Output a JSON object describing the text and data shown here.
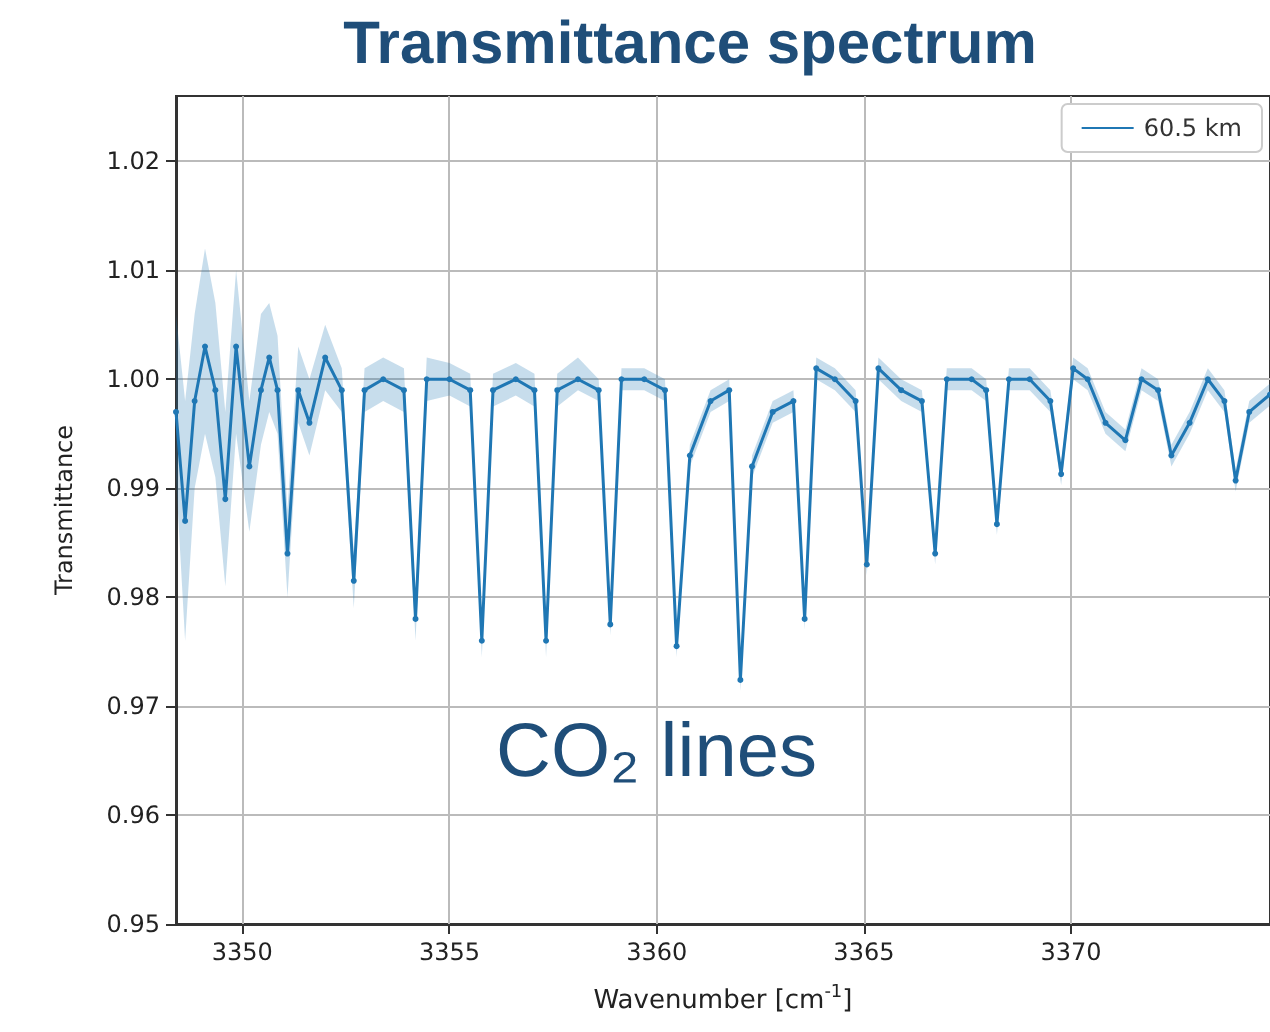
{
  "chart_data": {
    "type": "line",
    "title": "Transmittance spectrum",
    "xlabel": "Wavenumber [$^{}$cm$^{-1}$]",
    "ylabel": "Transmittance",
    "annotations": [
      "CO₂ lines"
    ],
    "xlim": [
      3348.4,
      3374.8
    ],
    "xticks": [
      3350,
      3355,
      3360,
      3365,
      3370
    ],
    "ylim": [
      0.95,
      1.026
    ],
    "yticks": [
      0.95,
      0.96,
      0.97,
      0.98,
      0.99,
      {
        "value": 1,
        "label": "1.00"
      },
      1.01,
      1.02
    ],
    "grid": true,
    "legend": "top right",
    "marker": "circle",
    "line_style": "solid",
    "series": [
      {
        "name": "60.5 km",
        "color": "#1f77b4",
        "x": [
          3348.4,
          3348.62,
          3348.85,
          3349.1,
          3349.35,
          3349.59,
          3349.85,
          3350.17,
          3350.45,
          3350.65,
          3350.85,
          3351.09,
          3351.35,
          3351.62,
          3352.0,
          3352.4,
          3352.69,
          3352.95,
          3353.4,
          3353.9,
          3354.18,
          3354.45,
          3355.0,
          3355.5,
          3355.78,
          3356.05,
          3356.6,
          3357.05,
          3357.33,
          3357.6,
          3358.1,
          3358.6,
          3358.88,
          3359.15,
          3359.7,
          3360.2,
          3360.48,
          3360.8,
          3361.3,
          3361.75,
          3362.02,
          3362.3,
          3362.8,
          3363.3,
          3363.57,
          3363.85,
          3364.3,
          3364.8,
          3365.07,
          3365.35,
          3365.9,
          3366.4,
          3366.72,
          3367.0,
          3367.6,
          3367.95,
          3368.21,
          3368.5,
          3369.0,
          3369.5,
          3369.76,
          3370.05,
          3370.4,
          3370.83,
          3371.31,
          3371.7,
          3372.1,
          3372.42,
          3372.86,
          3373.3,
          3373.7,
          3373.97,
          3374.3,
          3374.8
        ],
        "values": [
          0.997,
          0.987,
          0.998,
          1.003,
          0.999,
          0.989,
          1.003,
          0.992,
          0.999,
          1.002,
          0.999,
          0.984,
          0.999,
          0.996,
          1.002,
          0.999,
          0.9815,
          0.999,
          1.0,
          0.999,
          0.978,
          1.0,
          1.0,
          0.999,
          0.976,
          0.999,
          1.0,
          0.999,
          0.976,
          0.999,
          1.0,
          0.999,
          0.9775,
          1.0,
          1.0,
          0.999,
          0.9755,
          0.993,
          0.998,
          0.999,
          0.9724,
          0.992,
          0.997,
          0.998,
          0.978,
          1.001,
          1.0,
          0.998,
          0.983,
          1.001,
          0.999,
          0.998,
          0.984,
          1.0,
          1.0,
          0.999,
          0.9867,
          1.0,
          1.0,
          0.998,
          0.9913,
          1.001,
          1.0,
          0.996,
          0.9944,
          1.0,
          0.999,
          0.993,
          0.996,
          1.0,
          0.998,
          0.9907,
          0.997,
          0.9986
        ],
        "lower": [
          0.991,
          0.976,
          0.99,
          0.995,
          0.991,
          0.981,
          0.995,
          0.986,
          0.994,
          0.997,
          0.995,
          0.98,
          0.996,
          0.993,
          0.999,
          0.997,
          0.979,
          0.997,
          0.998,
          0.997,
          0.976,
          0.998,
          0.9985,
          0.9975,
          0.9745,
          0.9975,
          0.9985,
          0.9975,
          0.9745,
          0.9975,
          0.999,
          0.998,
          0.9765,
          0.999,
          0.999,
          0.998,
          0.9745,
          0.992,
          0.997,
          0.998,
          0.9714,
          0.991,
          0.996,
          0.997,
          0.977,
          1.0,
          0.999,
          0.997,
          0.982,
          1.0,
          0.998,
          0.997,
          0.983,
          0.999,
          0.999,
          0.998,
          0.9857,
          0.999,
          0.999,
          0.997,
          0.9903,
          1.0,
          0.999,
          0.995,
          0.9934,
          0.999,
          0.998,
          0.992,
          0.995,
          0.999,
          0.997,
          0.9897,
          0.996,
          0.9976
        ],
        "upper": [
          1.006,
          0.998,
          1.006,
          1.012,
          1.007,
          0.997,
          1.01,
          0.998,
          1.006,
          1.007,
          1.004,
          0.988,
          1.003,
          1.0,
          1.005,
          1.001,
          0.984,
          1.001,
          1.002,
          1.001,
          0.98,
          1.002,
          1.0015,
          1.0005,
          0.9775,
          1.0005,
          1.0015,
          1.0005,
          0.9775,
          1.0005,
          1.002,
          1.0,
          0.9785,
          1.001,
          1.001,
          1.0,
          0.9765,
          0.994,
          0.999,
          1.0,
          0.9734,
          0.993,
          0.998,
          0.999,
          0.979,
          1.002,
          1.001,
          0.999,
          0.984,
          1.002,
          1.0,
          0.999,
          0.985,
          1.001,
          1.001,
          1.0,
          0.9877,
          1.001,
          1.001,
          0.999,
          0.9923,
          1.002,
          1.001,
          0.997,
          0.9954,
          1.001,
          1.0,
          0.994,
          0.997,
          1.001,
          0.999,
          0.9917,
          0.998,
          0.9996
        ]
      }
    ]
  }
}
